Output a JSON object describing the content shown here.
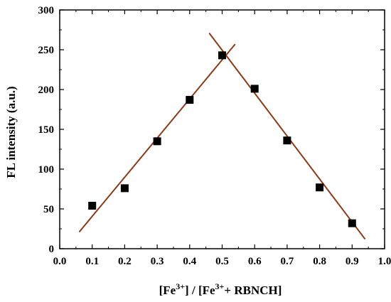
{
  "chart_data": {
    "type": "scatter",
    "xlabel_parts": {
      "bracket_open_1": "[",
      "fe": "Fe",
      "charge": "3+",
      "bracket_close_1": "]",
      "slash": " / ",
      "bracket_open_2": "[",
      "fe2": "Fe",
      "charge2": "3+",
      "plus_rbnch": "+ RBNCH",
      "bracket_close_2": "]"
    },
    "ylabel": "FL intensity (a.u.)",
    "xlim": [
      0.0,
      1.0
    ],
    "ylim": [
      0,
      300
    ],
    "x_ticks": [
      0.0,
      0.1,
      0.2,
      0.3,
      0.4,
      0.5,
      0.6,
      0.7,
      0.8,
      0.9,
      1.0
    ],
    "x_tick_labels": [
      "0.0",
      "0.1",
      "0.2",
      "0.3",
      "0.4",
      "0.5",
      "0.6",
      "0.7",
      "0.8",
      "0.9",
      "1.0"
    ],
    "y_ticks": [
      0,
      50,
      100,
      150,
      200,
      250,
      300
    ],
    "y_tick_labels": [
      "0",
      "50",
      "100",
      "150",
      "200",
      "250",
      "300"
    ],
    "points": [
      {
        "x": 0.1,
        "y": 54
      },
      {
        "x": 0.2,
        "y": 76
      },
      {
        "x": 0.3,
        "y": 135
      },
      {
        "x": 0.4,
        "y": 187
      },
      {
        "x": 0.5,
        "y": 243
      },
      {
        "x": 0.6,
        "y": 201
      },
      {
        "x": 0.7,
        "y": 136
      },
      {
        "x": 0.8,
        "y": 77
      },
      {
        "x": 0.9,
        "y": 32
      }
    ],
    "fit_lines": [
      {
        "x": [
          0.06,
          0.54
        ],
        "y": [
          21,
          257
        ]
      },
      {
        "x": [
          0.46,
          0.94
        ],
        "y": [
          271,
          12
        ]
      }
    ],
    "marker_color": "#000000",
    "line_color": "#8B3A1A",
    "grid": false
  }
}
